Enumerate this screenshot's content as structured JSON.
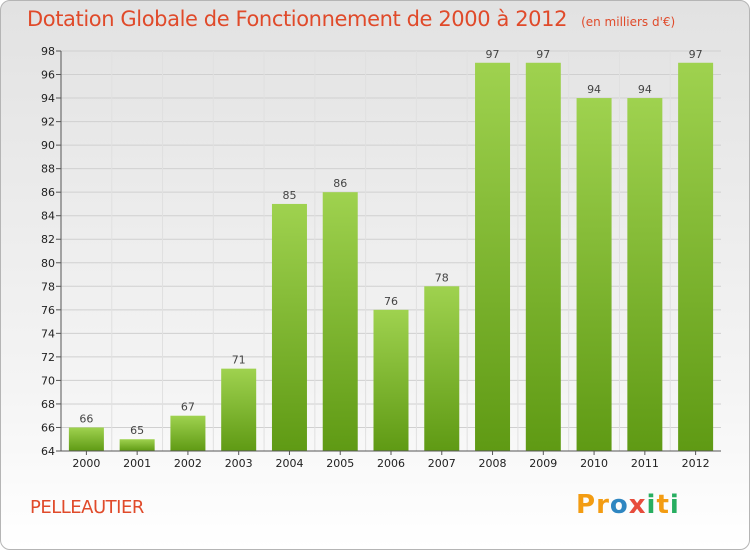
{
  "header": {
    "title": "Dotation Globale de Fonctionnement de 2000 à 2012",
    "subtitle": "(en milliers d'€)"
  },
  "footer": {
    "commune": "PELLEAUTIER",
    "logo": [
      "P",
      "r",
      "o",
      "x",
      "i",
      "t",
      "i"
    ]
  },
  "colors": {
    "title": "#e04a2a",
    "bar_top": "#9fd24f",
    "bar_bottom": "#5f9a14",
    "logo": [
      "#f39c12",
      "#f39c12",
      "#2e86c1",
      "#e74c3c",
      "#27ae60",
      "#f39c12",
      "#27ae60"
    ]
  },
  "chart_data": {
    "type": "bar",
    "title": "Dotation Globale de Fonctionnement de 2000 à 2012",
    "subtitle": "(en milliers d'€)",
    "categories": [
      "2000",
      "2001",
      "2002",
      "2003",
      "2004",
      "2005",
      "2006",
      "2007",
      "2008",
      "2009",
      "2010",
      "2011",
      "2012"
    ],
    "values": [
      66,
      65,
      67,
      71,
      85,
      86,
      76,
      78,
      97,
      97,
      94,
      94,
      97
    ],
    "ylim": [
      64,
      98
    ],
    "yticks": [
      64,
      66,
      68,
      70,
      72,
      74,
      76,
      78,
      80,
      82,
      84,
      86,
      88,
      90,
      92,
      94,
      96,
      98
    ],
    "grid": true
  }
}
